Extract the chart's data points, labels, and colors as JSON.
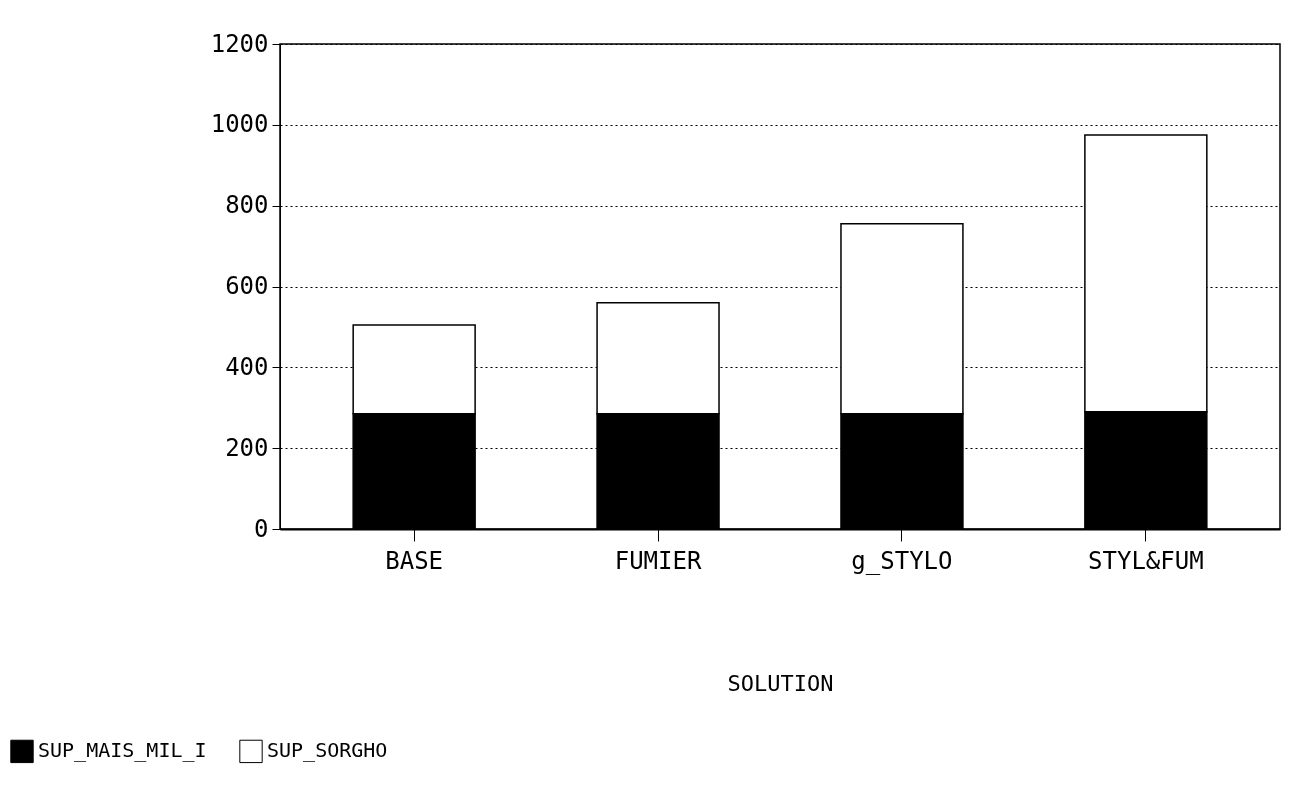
{
  "chart_data": {
    "type": "bar",
    "stacked": true,
    "xlabel": "SOLUTION",
    "categories": [
      "BASE",
      "FUMIER",
      "g_STYLO",
      "STYL&FUM"
    ],
    "series": [
      {
        "name": "SUP_MAIS_MIL_I",
        "color": "#000000",
        "values": [
          285,
          285,
          285,
          290
        ]
      },
      {
        "name": "SUP_SORGHO",
        "color": "#ffffff",
        "values": [
          220,
          275,
          470,
          685
        ]
      }
    ],
    "ylim": [
      0,
      1200
    ],
    "yticks": [
      0,
      200,
      400,
      600,
      800,
      1000,
      1200
    ],
    "grid": "y",
    "legend": "bottom left"
  }
}
